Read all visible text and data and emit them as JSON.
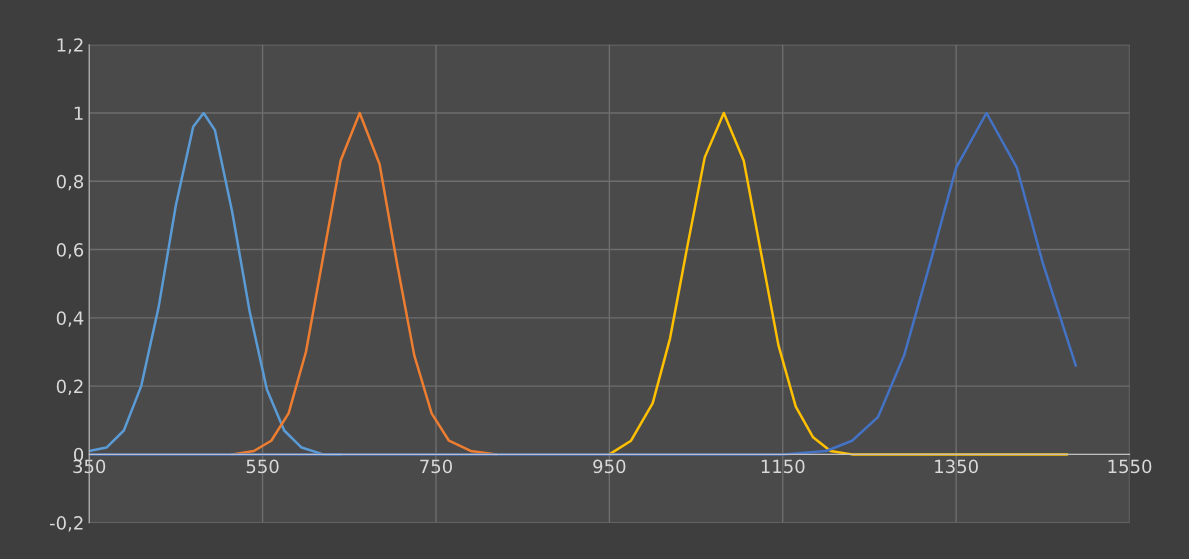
{
  "chart_data": {
    "type": "line",
    "xlim": [
      350,
      1550
    ],
    "ylim": [
      -0.2,
      1.2
    ],
    "xticks": [
      350,
      550,
      750,
      950,
      1150,
      1350,
      1550
    ],
    "yticks": [
      {
        "value": -0.2,
        "label": "-0,2"
      },
      0,
      {
        "value": 0.2,
        "label": "0,2"
      },
      {
        "value": 0.4,
        "label": "0,4"
      },
      {
        "value": 0.6,
        "label": "0,6"
      },
      {
        "value": 0.8,
        "label": "0,8"
      },
      1,
      {
        "value": 1.2,
        "label": "1,2"
      }
    ],
    "grid": true,
    "marker": "none",
    "line_style": "solid",
    "series": [
      {
        "color": "#5b9bd5",
        "x": [
          350,
          370,
          390,
          410,
          430,
          450,
          470,
          482,
          495,
          515,
          535,
          555,
          575,
          595,
          620,
          640
        ],
        "values": [
          0.01,
          0.02,
          0.07,
          0.2,
          0.43,
          0.73,
          0.96,
          1,
          0.95,
          0.71,
          0.42,
          0.19,
          0.07,
          0.02,
          0,
          0
        ]
      },
      {
        "color": "#ed7d31",
        "x": [
          515,
          540,
          560,
          580,
          600,
          620,
          640,
          662,
          685,
          705,
          725,
          745,
          765,
          790,
          820
        ],
        "values": [
          0,
          0.01,
          0.04,
          0.12,
          0.3,
          0.58,
          0.86,
          1,
          0.85,
          0.56,
          0.29,
          0.12,
          0.04,
          0.01,
          0
        ]
      },
      {
        "color": "#ffc000",
        "x": [
          950,
          975,
          1000,
          1020,
          1040,
          1060,
          1082,
          1105,
          1125,
          1145,
          1165,
          1185,
          1205,
          1230,
          1478
        ],
        "values": [
          0,
          0.04,
          0.15,
          0.34,
          0.61,
          0.87,
          1,
          0.86,
          0.59,
          0.32,
          0.14,
          0.05,
          0.01,
          0,
          0
        ]
      },
      {
        "color": "#4472c4",
        "x": [
          350,
          1150,
          1200,
          1230,
          1260,
          1290,
          1320,
          1350,
          1385,
          1420,
          1450,
          1488
        ],
        "values": [
          0,
          0,
          0.01,
          0.04,
          0.11,
          0.29,
          0.56,
          0.84,
          1,
          0.84,
          0.56,
          0.26
        ]
      }
    ]
  }
}
